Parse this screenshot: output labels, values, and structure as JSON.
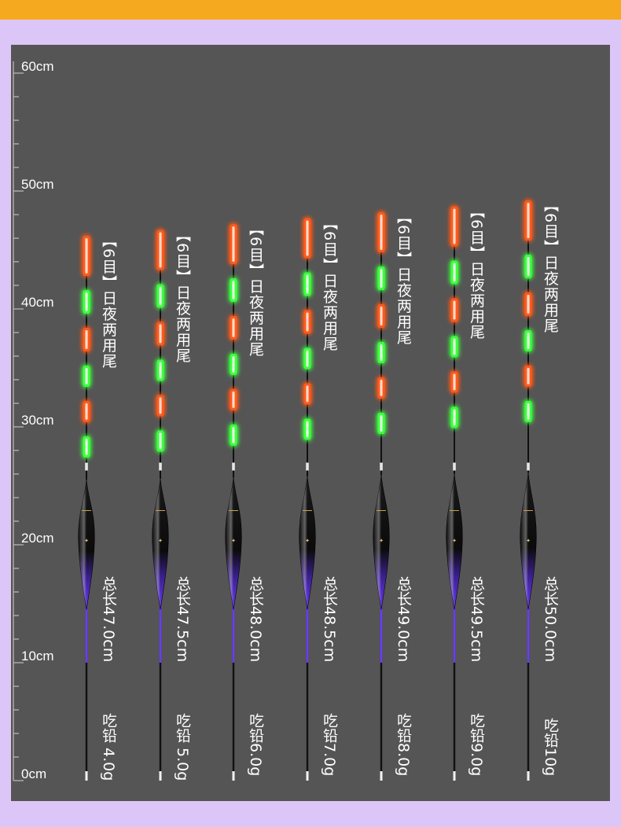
{
  "scale": {
    "unit": "cm",
    "labels": [
      "60cm",
      "50cm",
      "40cm",
      "30cm",
      "20cm",
      "10cm",
      "0cm"
    ]
  },
  "colors": {
    "background": "#dcc6f7",
    "top_bar": "#f5a91f",
    "panel": "#555555",
    "glow_red": "#ff5a1e",
    "glow_green": "#3cff3c",
    "body_purple": "#5a2bd1",
    "body_black": "#0b0b0b"
  },
  "floats": [
    {
      "name": "【6目】日夜两用尾",
      "length": "总长47.0cm",
      "weight": "吃铅 4.0g",
      "length_cm": 47.0
    },
    {
      "name": "【6目】日夜两用尾",
      "length": "总长47.5cm",
      "weight": "吃铅 5.0g",
      "length_cm": 47.5
    },
    {
      "name": "【6目】日夜两用尾",
      "length": "总长48.0cm",
      "weight": "吃铅6.0g",
      "length_cm": 48.0
    },
    {
      "name": "【6目】日夜两用尾",
      "length": "总长48.5cm",
      "weight": "吃铅7.0g",
      "length_cm": 48.5
    },
    {
      "name": "【6目】日夜两用尾",
      "length": "总长49.0cm",
      "weight": "吃铅8.0g",
      "length_cm": 49.0
    },
    {
      "name": "【6目】日夜两用尾",
      "length": "总长49.5cm",
      "weight": "吃铅9.0g",
      "length_cm": 49.5
    },
    {
      "name": "【6目】日夜两用尾",
      "length": "总长50.0cm",
      "weight": "吃铅10g",
      "length_cm": 50.0
    }
  ]
}
